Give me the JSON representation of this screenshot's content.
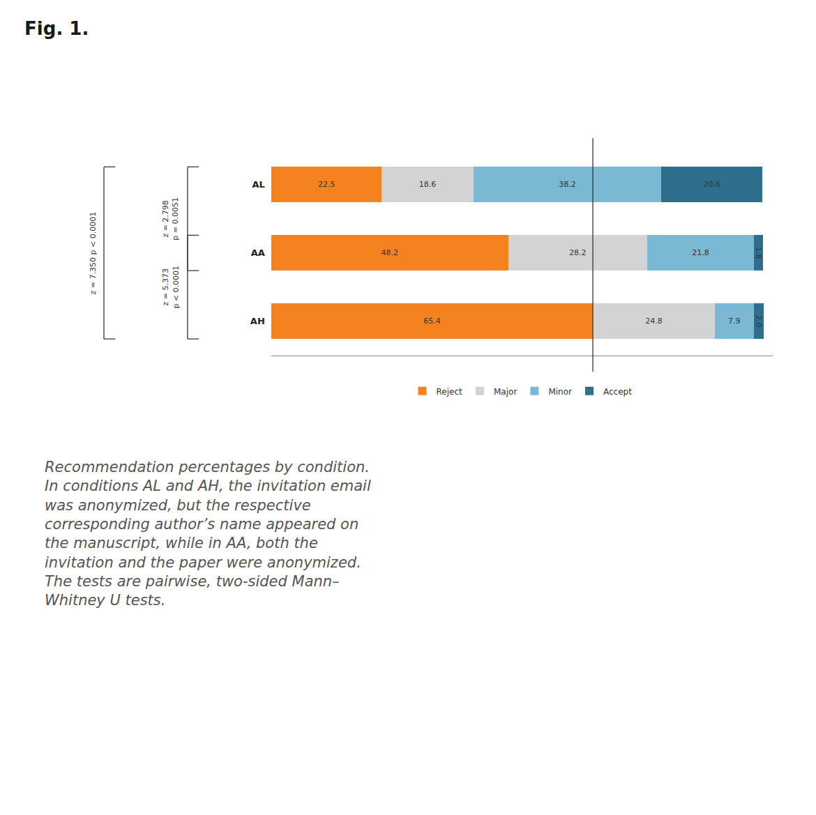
{
  "chart_data": {
    "type": "bar",
    "title": "Fig. 1.",
    "orientation": "horizontal",
    "stacked": true,
    "data_labels": true,
    "tick_labels": "y",
    "grid": false,
    "legend": "bottom",
    "categories": [
      "AH",
      "AA",
      "AL"
    ],
    "series": [
      {
        "name": "Reject",
        "color": "#F4831F",
        "values": [
          65.4,
          48.2,
          22.5
        ]
      },
      {
        "name": "Major",
        "color": "#D3D3D3",
        "values": [
          24.8,
          28.2,
          18.6
        ]
      },
      {
        "name": "Minor",
        "color": "#7AB8D4",
        "values": [
          7.9,
          21.8,
          38.2
        ]
      },
      {
        "name": "Accept",
        "color": "#2E6F8E",
        "values": [
          2.0,
          1.8,
          20.6
        ],
        "value_labels": [
          "2.0",
          "1.8",
          "20.6"
        ]
      }
    ],
    "xlim": [
      0,
      102
    ],
    "vline_x": 65.4,
    "brackets": [
      {
        "from": "AH",
        "to": "AL",
        "label": "z = 7.350 p < 0.0001"
      },
      {
        "from": "AA",
        "to": "AL",
        "label": "z = 2.798\np = 0.0051"
      },
      {
        "from": "AH",
        "to": "AA",
        "label": "z = 5.373\np < 0.0001"
      }
    ],
    "caption_lines": [
      "Recommendation percentages by condition.",
      "In conditions AL and AH, the invitation email",
      "was anonymized, but the respective",
      "corresponding author’s name appeared on",
      "the manuscript, while in AA, both the",
      "invitation and the paper were anonymized.",
      "The tests are pairwise, two-sided Mann–",
      "Whitney U tests."
    ]
  }
}
